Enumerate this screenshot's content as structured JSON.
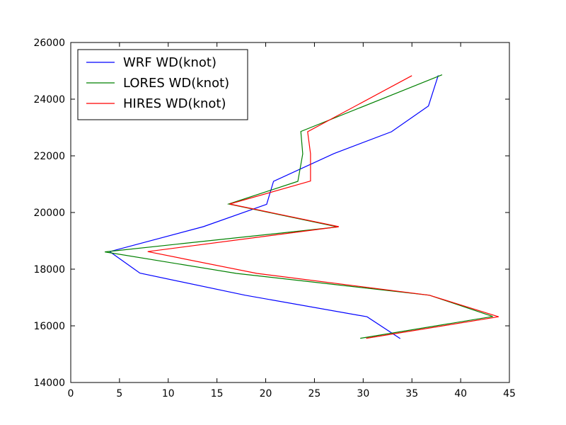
{
  "chart_data": {
    "type": "line",
    "title": "",
    "xlabel": "",
    "ylabel": "",
    "xlim": [
      0,
      45
    ],
    "ylim": [
      14000,
      26000
    ],
    "xticks": [
      0,
      5,
      10,
      15,
      20,
      25,
      30,
      35,
      40,
      45
    ],
    "yticks": [
      14000,
      16000,
      18000,
      20000,
      22000,
      24000,
      26000
    ],
    "xtick_labels": [
      "0",
      "5",
      "10",
      "15",
      "20",
      "25",
      "30",
      "35",
      "40",
      "45"
    ],
    "ytick_labels": [
      "14000",
      "16000",
      "18000",
      "20000",
      "22000",
      "24000",
      "26000"
    ],
    "grid": false,
    "legend_position": "top-left",
    "series": [
      {
        "name": "WRF WD(knot)",
        "color": "#0000ff",
        "points": [
          [
            33.8,
            15550
          ],
          [
            30.4,
            16320
          ],
          [
            17.9,
            17080
          ],
          [
            7.1,
            17860
          ],
          [
            4.0,
            18620
          ],
          [
            13.6,
            19500
          ],
          [
            20.1,
            20290
          ],
          [
            20.8,
            21100
          ],
          [
            27.0,
            22080
          ],
          [
            32.9,
            22850
          ],
          [
            36.7,
            23760
          ],
          [
            37.7,
            24840
          ]
        ]
      },
      {
        "name": "LORES WD(knot)",
        "color": "#008000",
        "points": [
          [
            29.7,
            15560
          ],
          [
            43.3,
            16330
          ],
          [
            36.8,
            17080
          ],
          [
            17.0,
            17850
          ],
          [
            3.5,
            18610
          ],
          [
            27.4,
            19490
          ],
          [
            16.2,
            20300
          ],
          [
            23.3,
            21100
          ],
          [
            23.8,
            22070
          ],
          [
            23.6,
            22860
          ],
          [
            38.1,
            24860
          ]
        ]
      },
      {
        "name": "HIRES WD(knot)",
        "color": "#ff0000",
        "points": [
          [
            30.3,
            15560
          ],
          [
            43.9,
            16320
          ],
          [
            36.8,
            17080
          ],
          [
            19.1,
            17850
          ],
          [
            7.9,
            18620
          ],
          [
            27.5,
            19500
          ],
          [
            16.3,
            20300
          ],
          [
            24.6,
            21110
          ],
          [
            24.6,
            22070
          ],
          [
            24.3,
            22850
          ],
          [
            35.0,
            24830
          ]
        ]
      }
    ]
  }
}
